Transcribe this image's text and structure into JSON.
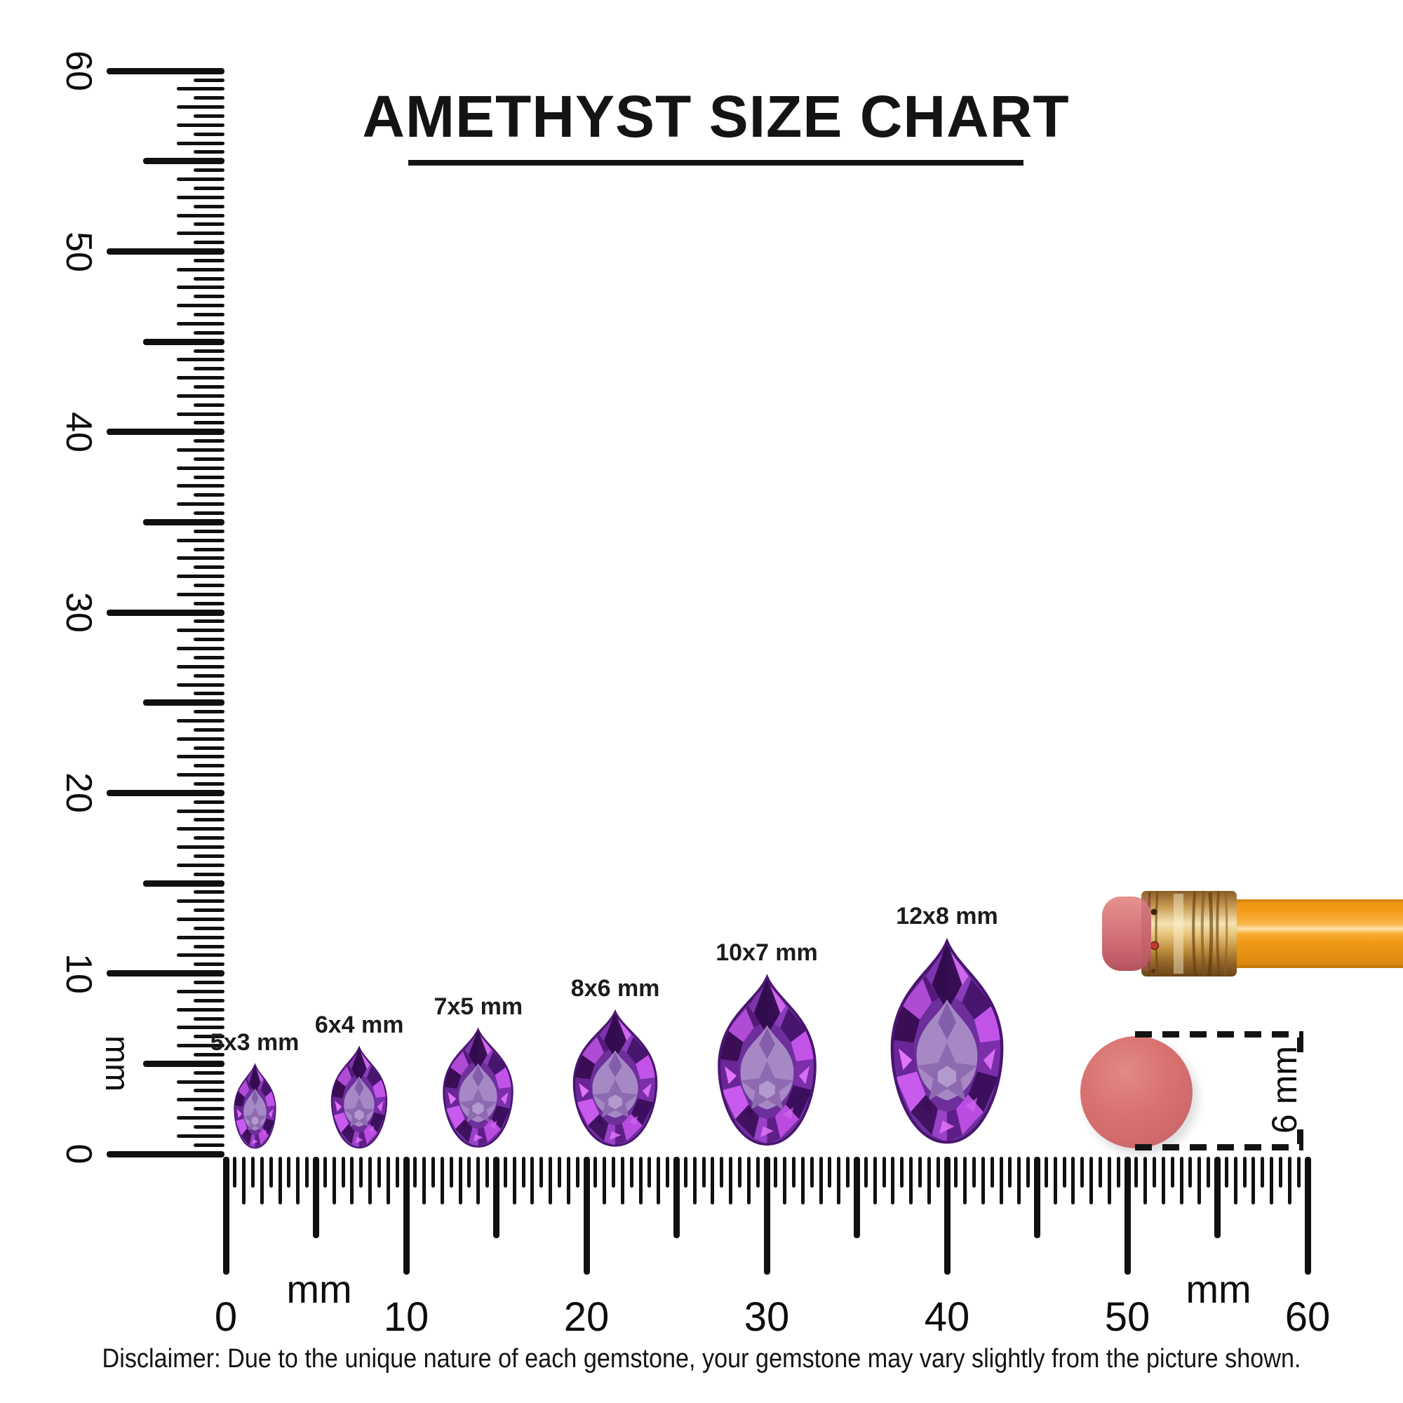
{
  "title": {
    "text": "AMETHYST SIZE CHART"
  },
  "gem_row": {
    "shape": "pear",
    "gem_color": "#7c3ba7",
    "gems": [
      {
        "label": "5x3 mm",
        "width_mm": 3,
        "height_mm": 5,
        "center_mm": 1.6
      },
      {
        "label": "6x4 mm",
        "width_mm": 4,
        "height_mm": 6,
        "center_mm": 7.4
      },
      {
        "label": "7x5 mm",
        "width_mm": 5,
        "height_mm": 7,
        "center_mm": 14.0
      },
      {
        "label": "8x6 mm",
        "width_mm": 6,
        "height_mm": 8,
        "center_mm": 21.6
      },
      {
        "label": "10x7 mm",
        "width_mm": 7,
        "height_mm": 10,
        "center_mm": 30.0
      },
      {
        "label": "12x8 mm",
        "width_mm": 8,
        "height_mm": 12,
        "center_mm": 40.0
      }
    ]
  },
  "rulers": {
    "vertical": {
      "unit": "mm",
      "labels": [
        0,
        10,
        20,
        30,
        40,
        50,
        60
      ],
      "range_mm": [
        0,
        60
      ]
    },
    "horizontal": {
      "unit_left": "mm",
      "unit_right": "mm",
      "labels": [
        0,
        10,
        20,
        30,
        40,
        50,
        60
      ],
      "range_mm": [
        0,
        60
      ]
    }
  },
  "reference": {
    "pencil": {
      "name": "pencil",
      "eraser_color": "#d4717a",
      "ferrule_color": "#d8a75c",
      "body_color": "#f7a01d"
    },
    "dot": {
      "label": "6 mm",
      "diameter_mm": 6,
      "color": "#d76d70"
    }
  },
  "disclaimer": {
    "text": "Disclaimer: Due to the unique nature of each gemstone, your gemstone may vary slightly from the picture shown."
  }
}
